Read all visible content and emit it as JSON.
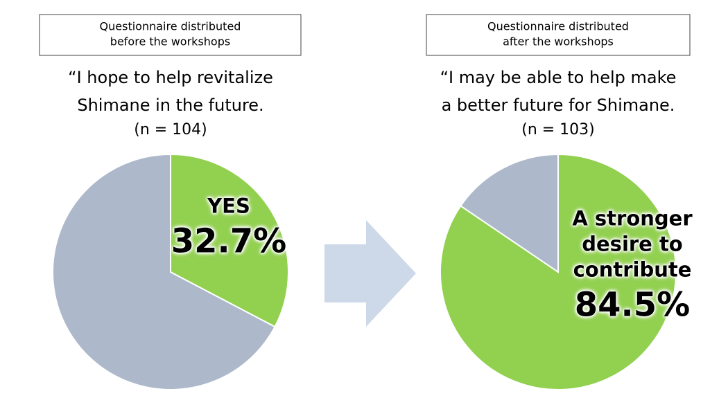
{
  "chart_data": [
    {
      "type": "pie",
      "header": [
        "Questionnaire distributed",
        "before the workshops"
      ],
      "title": [
        "“I hope to help revitalize",
        "Shimane in the future."
      ],
      "subtitle": "(n = 104)",
      "categories": [
        "YES",
        null
      ],
      "values": [
        32.7,
        67.3
      ],
      "value_labels": [
        "32.7%",
        null
      ],
      "colors": [
        "#92d050",
        "#adb9ca"
      ]
    },
    {
      "type": "pie",
      "header": [
        "Questionnaire distributed",
        "after the workshops"
      ],
      "title": [
        "“I may be able to help make",
        "a better future for Shimane."
      ],
      "subtitle": "(n = 103)",
      "categories": [
        "A stronger desire to contribute",
        null
      ],
      "values": [
        84.5,
        15.5
      ],
      "value_labels": [
        "84.5%",
        null
      ],
      "colors": [
        "#92d050",
        "#adb9ca"
      ]
    }
  ]
}
